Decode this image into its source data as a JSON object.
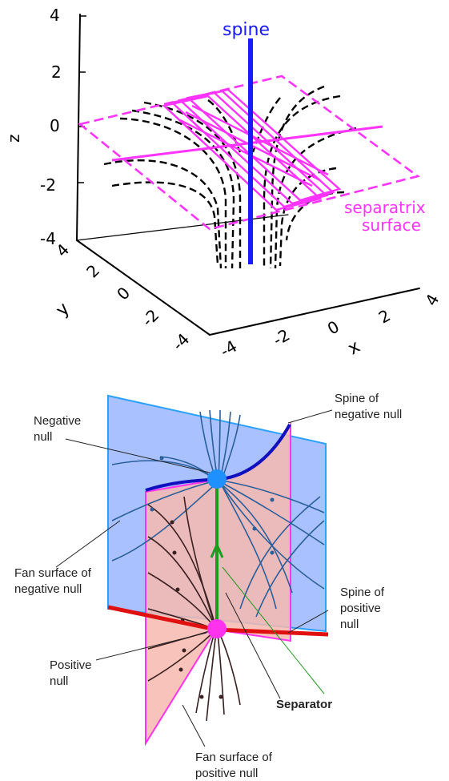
{
  "top_panel": {
    "spine_label": "spine",
    "separatrix_label_line1": "separatrix",
    "separatrix_label_line2": "surface",
    "z_axis_label": "z",
    "x_axis_label": "x",
    "y_axis_label": "y",
    "z_ticks": [
      "4",
      "2",
      "0",
      "-2",
      "-4"
    ],
    "y_ticks": [
      "4",
      "2",
      "0",
      "-2",
      "-4"
    ],
    "x_ticks": [
      "-4",
      "-2",
      "0",
      "2",
      "4"
    ],
    "colors": {
      "spine": "#1a1aff",
      "separatrix": "#ff33ff",
      "field_lines": "#000000"
    }
  },
  "bottom_panel": {
    "labels": {
      "spine_negative_1": "Spine of",
      "spine_negative_2": "negative null",
      "negative_null_1": "Negative",
      "negative_null_2": "null",
      "fan_negative_1": "Fan surface of",
      "fan_negative_2": "negative null",
      "spine_positive_1": "Spine of",
      "spine_positive_2": "positive",
      "spine_positive_3": "null",
      "positive_null_1": "Positive",
      "positive_null_2": "null",
      "separator": "Separator",
      "fan_positive_1": "Fan surface of",
      "fan_positive_2": "positive null"
    },
    "colors": {
      "fan_negative": "#a9c2ff",
      "fan_positive": "#f7b8ae",
      "negative_null": "#1e90ff",
      "positive_null": "#ff33ee",
      "separator": "#1e9a1e",
      "spine_negative": "#1010c0",
      "spine_positive": "#e01010"
    }
  }
}
